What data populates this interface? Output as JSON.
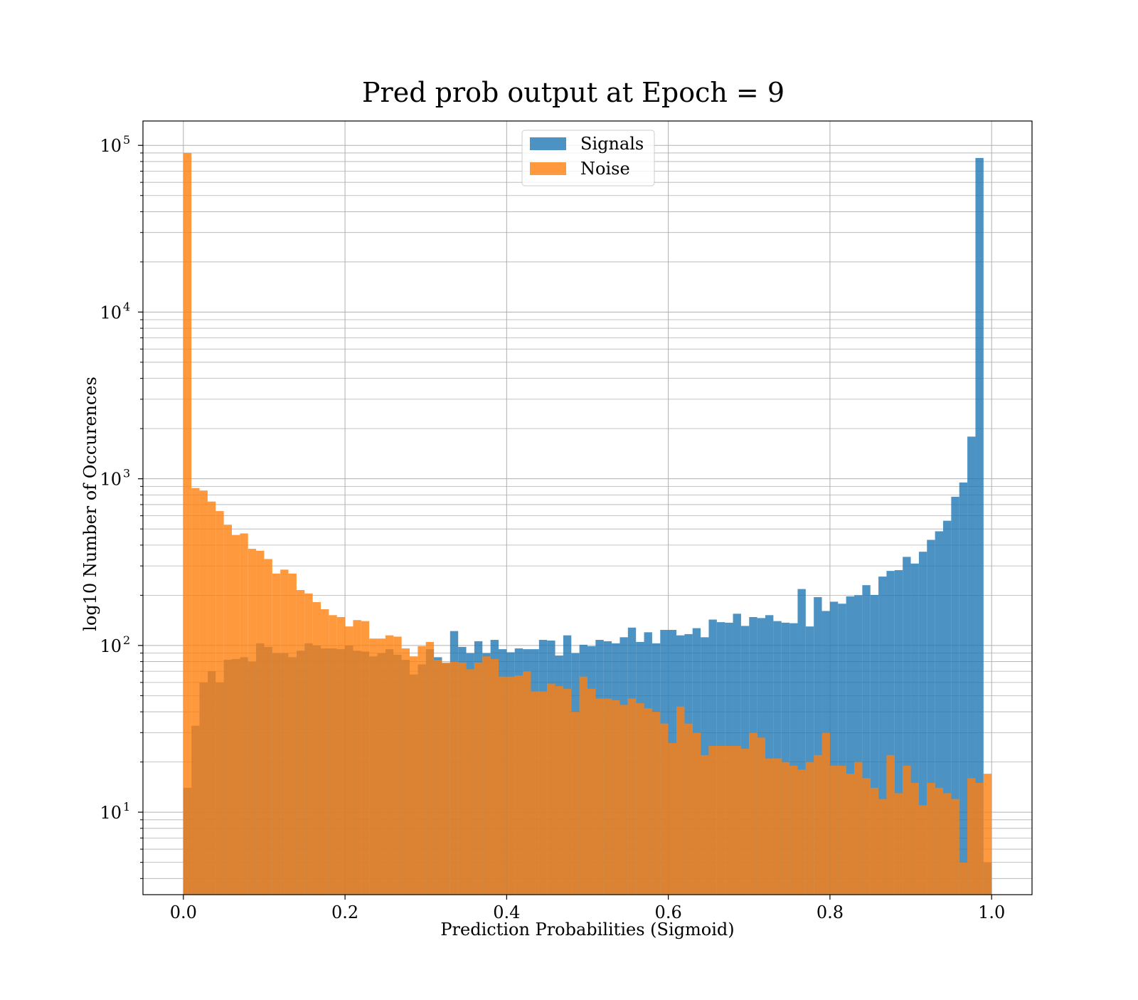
{
  "chart_data": {
    "type": "bar",
    "title": "Pred prob output at Epoch = 9",
    "xlabel": "Prediction Probabilities (Sigmoid)",
    "ylabel": "log10 Number of Occurences",
    "xlim": [
      -0.05,
      1.05
    ],
    "ylim": [
      3.2,
      140000
    ],
    "yscale": "log",
    "grid": true,
    "legend_position": "upper center",
    "x_ticks": [
      "0.0",
      "0.2",
      "0.4",
      "0.6",
      "0.8",
      "1.0"
    ],
    "y_ticks": [
      {
        "base": "10",
        "exp": "1",
        "value": 10
      },
      {
        "base": "10",
        "exp": "2",
        "value": 100
      },
      {
        "base": "10",
        "exp": "3",
        "value": 1000
      },
      {
        "base": "10",
        "exp": "4",
        "value": 10000
      },
      {
        "base": "10",
        "exp": "5",
        "value": 100000
      }
    ],
    "bins": {
      "start": 0.0,
      "end": 1.0,
      "count": 100
    },
    "series": [
      {
        "name": "Signals",
        "color": "#1f77b4",
        "opacity": 0.8,
        "values": [
          14,
          33,
          60,
          70,
          60,
          82,
          83,
          85,
          80,
          103,
          98,
          90,
          90,
          85,
          93,
          103,
          100,
          96,
          96,
          95,
          100,
          93,
          92,
          86,
          90,
          95,
          88,
          82,
          67,
          77,
          95,
          85,
          78,
          122,
          98,
          90,
          106,
          90,
          108,
          95,
          91,
          96,
          95,
          95,
          108,
          107,
          87,
          115,
          90,
          101,
          99,
          108,
          106,
          103,
          112,
          128,
          105,
          120,
          103,
          124,
          124,
          115,
          117,
          127,
          112,
          143,
          138,
          137,
          155,
          131,
          148,
          146,
          152,
          140,
          137,
          136,
          218,
          130,
          195,
          161,
          183,
          178,
          197,
          200,
          230,
          201,
          259,
          280,
          283,
          340,
          310,
          365,
          430,
          484,
          560,
          780,
          950,
          1790,
          84000,
          5
        ]
      },
      {
        "name": "Noise",
        "color": "#ff7f0e",
        "opacity": 0.8,
        "values": [
          90000,
          880,
          850,
          730,
          640,
          530,
          460,
          470,
          380,
          370,
          330,
          270,
          285,
          270,
          215,
          205,
          182,
          165,
          152,
          148,
          130,
          142,
          140,
          110,
          110,
          115,
          113,
          96,
          86,
          99,
          105,
          82,
          79,
          80,
          79,
          72,
          79,
          86,
          83,
          65,
          65,
          66,
          70,
          53,
          53,
          59,
          57,
          55,
          40,
          65,
          55,
          48,
          48,
          47,
          44,
          48,
          45,
          42,
          40,
          34,
          26,
          43,
          34,
          30,
          22,
          25,
          25,
          25,
          25,
          24,
          30,
          28,
          21,
          21,
          20,
          19,
          18,
          20,
          22,
          30,
          19,
          19,
          17,
          20,
          16,
          14,
          12,
          22,
          13,
          19,
          15,
          11,
          15,
          14,
          13,
          12,
          5,
          16,
          15,
          17
        ]
      }
    ]
  }
}
